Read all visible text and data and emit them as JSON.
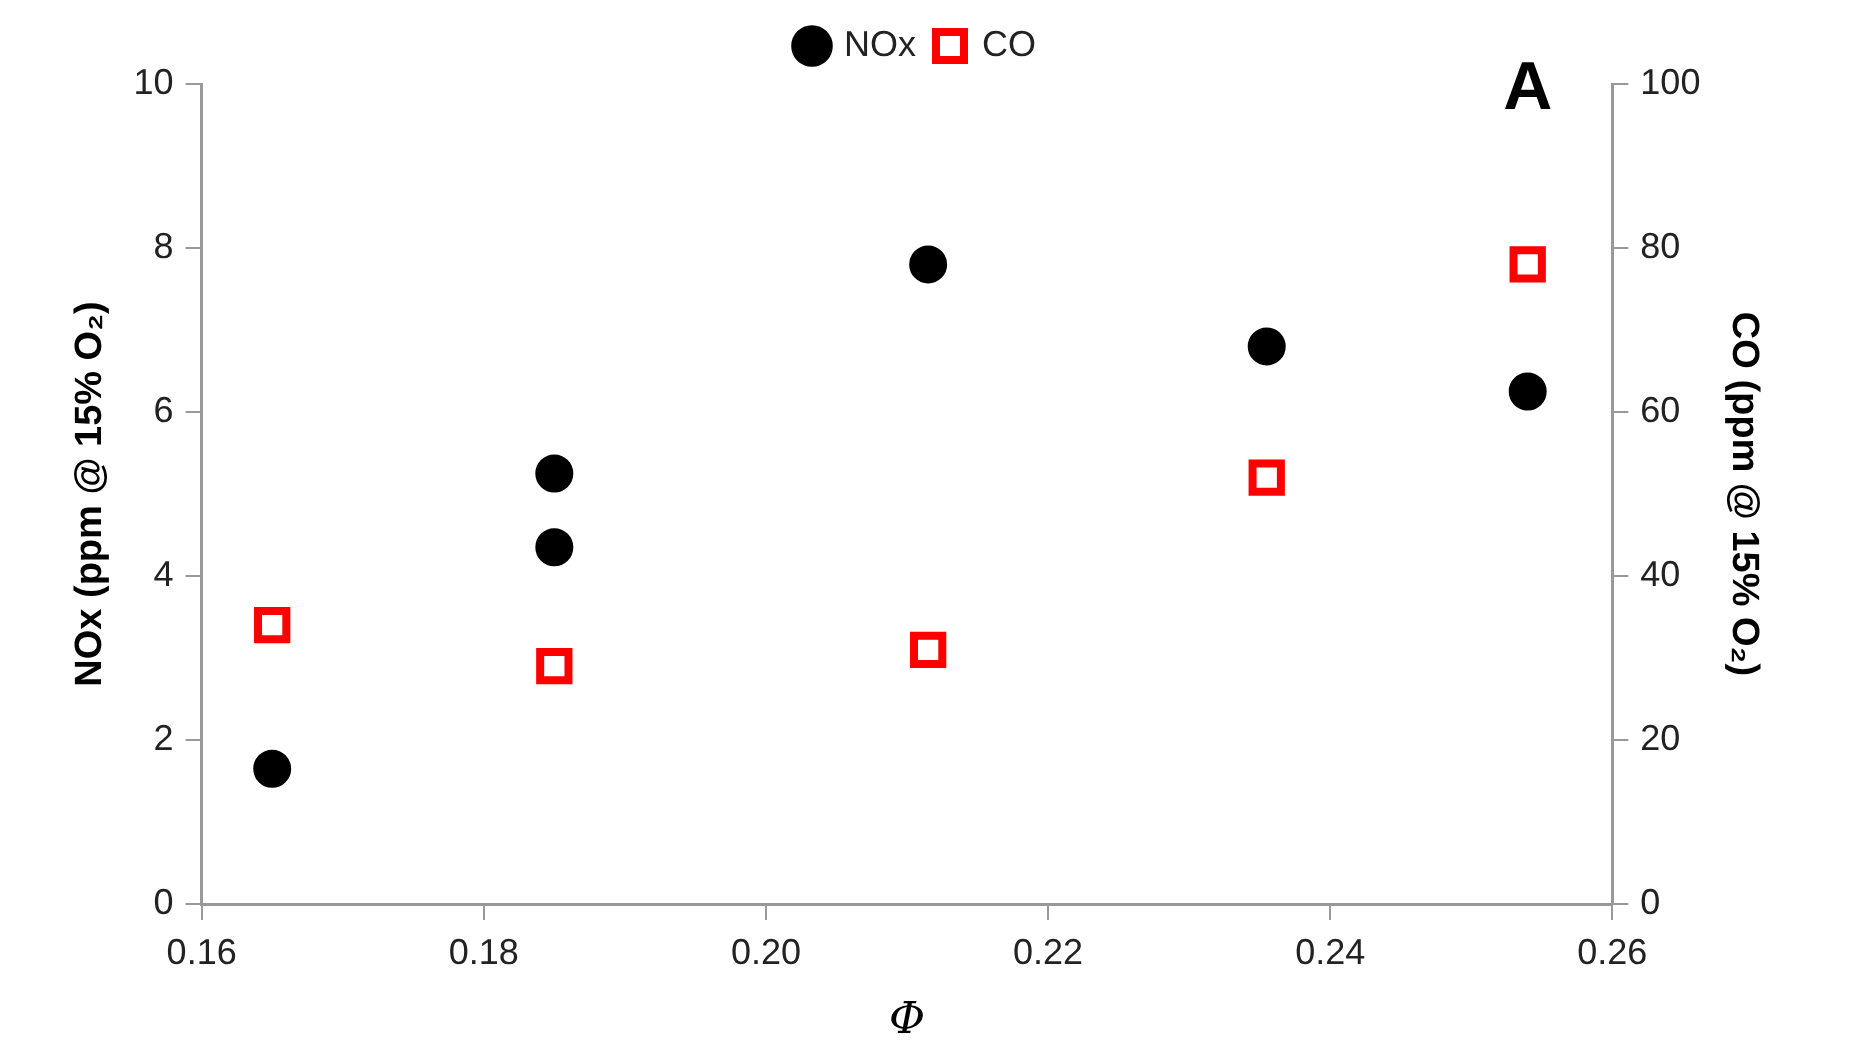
{
  "chart_data": {
    "type": "scatter",
    "xlabel": "Φ",
    "ylabel": "NOx (ppm @ 15% O₂)",
    "y2label": "CO (ppm @ 15% O₂)",
    "annotations": [
      "A"
    ],
    "xlim": [
      0.16,
      0.26
    ],
    "xticks": [
      0.16,
      0.18,
      {
        "value": 0.2,
        "label": "0.20"
      },
      0.22,
      0.24,
      0.26
    ],
    "ylim": [
      0,
      10
    ],
    "yticks": [
      0,
      2,
      4,
      6,
      8,
      10
    ],
    "y2lim": [
      0,
      100
    ],
    "y2ticks": [
      0,
      20,
      40,
      60,
      80,
      100
    ],
    "grid": false,
    "legend": "top",
    "series": [
      {
        "name": "NOx",
        "color": "#000000",
        "marker": "circle",
        "x": [
          0.165,
          0.185,
          0.185,
          0.2115,
          0.2355,
          0.254
        ],
        "values": [
          1.65,
          5.25,
          4.35,
          7.8,
          6.8,
          6.25
        ]
      },
      {
        "name": "CO",
        "color": "#ff0000",
        "marker": "square",
        "axis": "y2",
        "x": [
          0.165,
          0.185,
          0.2115,
          0.2355,
          0.254
        ],
        "values": [
          34,
          29,
          31,
          52,
          78
        ]
      }
    ]
  }
}
